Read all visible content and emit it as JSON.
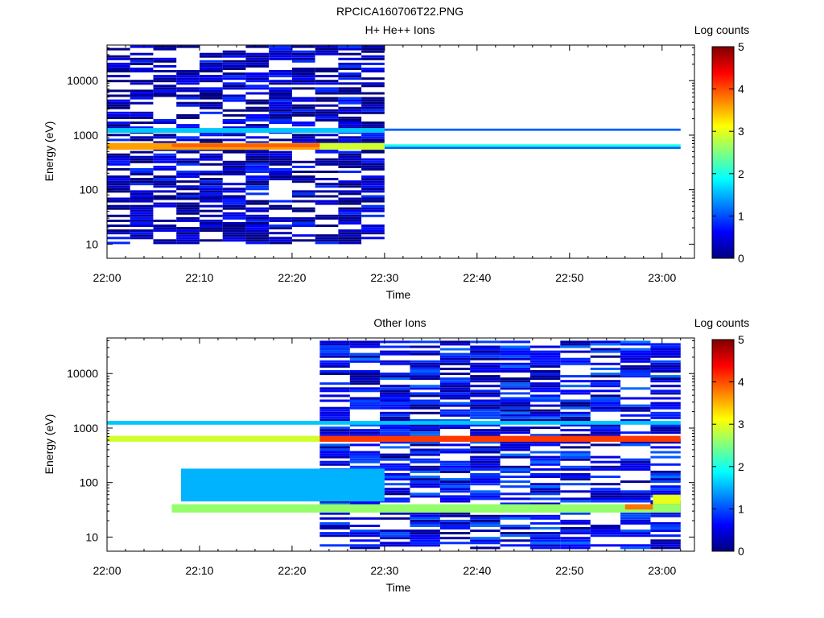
{
  "figure": {
    "title": "RPCICA160706T22.PNG"
  },
  "chart_data": [
    {
      "type": "heatmap",
      "title": "H+ He++ Ions",
      "xlabel": "Time",
      "ylabel": "Energy (eV)",
      "x_ticks": [
        "22:00",
        "22:10",
        "22:20",
        "22:30",
        "22:40",
        "22:50",
        "23:00"
      ],
      "y_ticks": [
        "10",
        "100",
        "1000",
        "10000"
      ],
      "y_scale": "log",
      "ylim": [
        5.5,
        45000
      ],
      "colorbar": {
        "label": "Log counts",
        "range": [
          0,
          5
        ],
        "ticks": [
          "0",
          "1",
          "2",
          "3",
          "4",
          "5"
        ]
      },
      "bands": [
        {
          "from": "22:00",
          "to": "22:23",
          "e_low": 540,
          "e_high": 720,
          "log_counts": 3.6
        },
        {
          "from": "22:07",
          "to": "22:23",
          "e_low": 600,
          "e_high": 700,
          "log_counts": 3.9
        },
        {
          "from": "22:00",
          "to": "22:30",
          "e_low": 1100,
          "e_high": 1350,
          "log_counts": 1.6
        },
        {
          "from": "22:23",
          "to": "22:30",
          "e_low": 540,
          "e_high": 720,
          "log_counts": 2.9
        },
        {
          "from": "22:30",
          "to": "23:02",
          "e_low": 610,
          "e_high": 680,
          "log_counts": 2.0
        },
        {
          "from": "22:30",
          "to": "23:02",
          "e_low": 560,
          "e_high": 610,
          "log_counts": 1.1
        },
        {
          "from": "22:30",
          "to": "23:02",
          "e_low": 1200,
          "e_high": 1320,
          "log_counts": 1.1
        }
      ],
      "background_span": {
        "from": "22:00",
        "to": "22:30",
        "e_low": 10,
        "e_high": 40000,
        "log_counts": 0.3
      }
    },
    {
      "type": "heatmap",
      "title": "Other Ions",
      "xlabel": "Time",
      "ylabel": "Energy (eV)",
      "x_ticks": [
        "22:00",
        "22:10",
        "22:20",
        "22:30",
        "22:40",
        "22:50",
        "23:00"
      ],
      "y_ticks": [
        "10",
        "100",
        "1000",
        "10000"
      ],
      "y_scale": "log",
      "ylim": [
        5.5,
        45000
      ],
      "colorbar": {
        "label": "Log counts",
        "range": [
          0,
          5
        ],
        "ticks": [
          "0",
          "1",
          "2",
          "3",
          "4",
          "5"
        ]
      },
      "bands": [
        {
          "from": "22:00",
          "to": "22:23",
          "e_low": 560,
          "e_high": 720,
          "log_counts": 2.9
        },
        {
          "from": "22:23",
          "to": "23:02",
          "e_low": 560,
          "e_high": 720,
          "log_counts": 4.1
        },
        {
          "from": "22:00",
          "to": "23:02",
          "e_low": 1150,
          "e_high": 1350,
          "log_counts": 1.6
        },
        {
          "from": "22:07",
          "to": "23:02",
          "e_low": 28,
          "e_high": 40,
          "log_counts": 2.6
        },
        {
          "from": "22:08",
          "to": "22:30",
          "e_low": 45,
          "e_high": 180,
          "log_counts": 1.5
        },
        {
          "from": "22:56",
          "to": "22:59",
          "e_low": 32,
          "e_high": 40,
          "log_counts": 3.8
        },
        {
          "from": "22:59",
          "to": "23:02",
          "e_low": 40,
          "e_high": 60,
          "log_counts": 3.0
        }
      ],
      "background_span": {
        "from": "22:23",
        "to": "23:02",
        "e_low": 6,
        "e_high": 40000,
        "log_counts": 0.6
      }
    }
  ]
}
